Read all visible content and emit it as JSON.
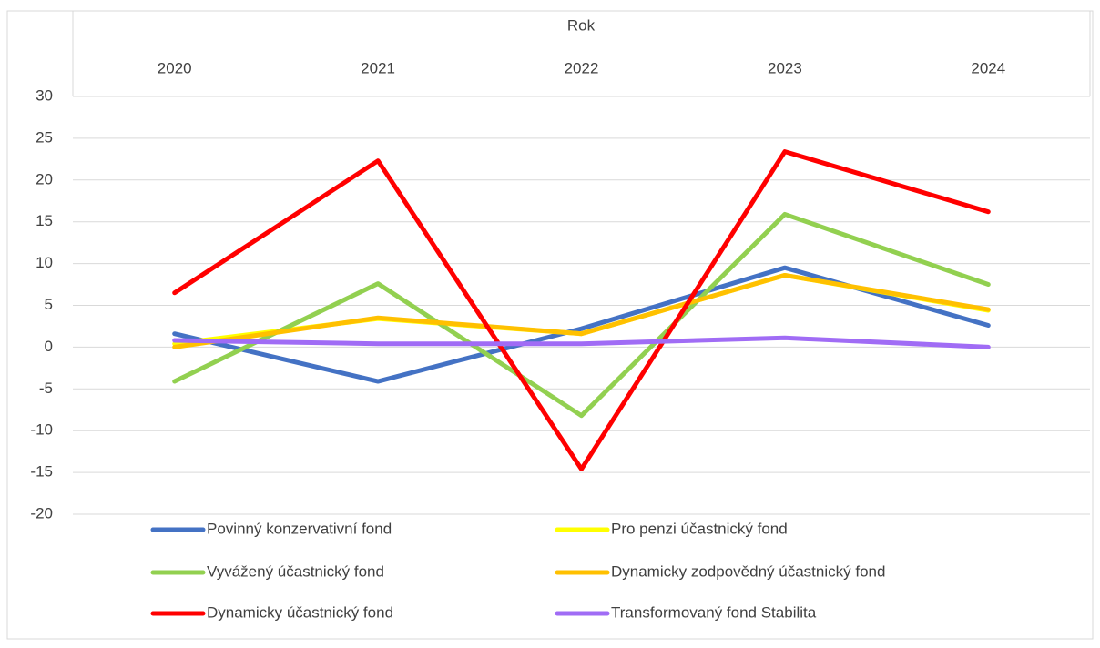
{
  "chart_data": {
    "type": "line",
    "x_label": "Rok",
    "categories": [
      "2020",
      "2021",
      "2022",
      "2023",
      "2024"
    ],
    "series": [
      {
        "name": "Povinný konzervativní fond",
        "color": "#4472c4",
        "values": [
          1.6,
          -4.1,
          2.2,
          9.5,
          2.6
        ]
      },
      {
        "name": "Pro penzi účastnický fond",
        "color": "#ffff00",
        "values": [
          0.4,
          3.4,
          1.6,
          8.6,
          4.4
        ]
      },
      {
        "name": "Vyvážený účastnický fond",
        "color": "#92d050",
        "values": [
          -4.1,
          7.6,
          -8.2,
          15.9,
          7.5
        ]
      },
      {
        "name": "Dynamicky zodpovědný účastnický fond",
        "color": "#ffc000",
        "values": [
          0,
          3.5,
          1.6,
          8.6,
          4.5
        ]
      },
      {
        "name": "Dynamicky účastnický fond",
        "color": "#ff0000",
        "values": [
          6.5,
          22.3,
          -14.6,
          23.4,
          16.2
        ]
      },
      {
        "name": "Transformovaný fond Stabilita",
        "color": "#a06cf5",
        "values": [
          0.8,
          0.4,
          0.4,
          1.1,
          0
        ]
      }
    ],
    "ylim": [
      -20,
      30
    ],
    "yticks": [
      -20,
      -15,
      -10,
      -5,
      0,
      5,
      10,
      15,
      20,
      25,
      30
    ],
    "grid": true,
    "legend": "bottom"
  }
}
